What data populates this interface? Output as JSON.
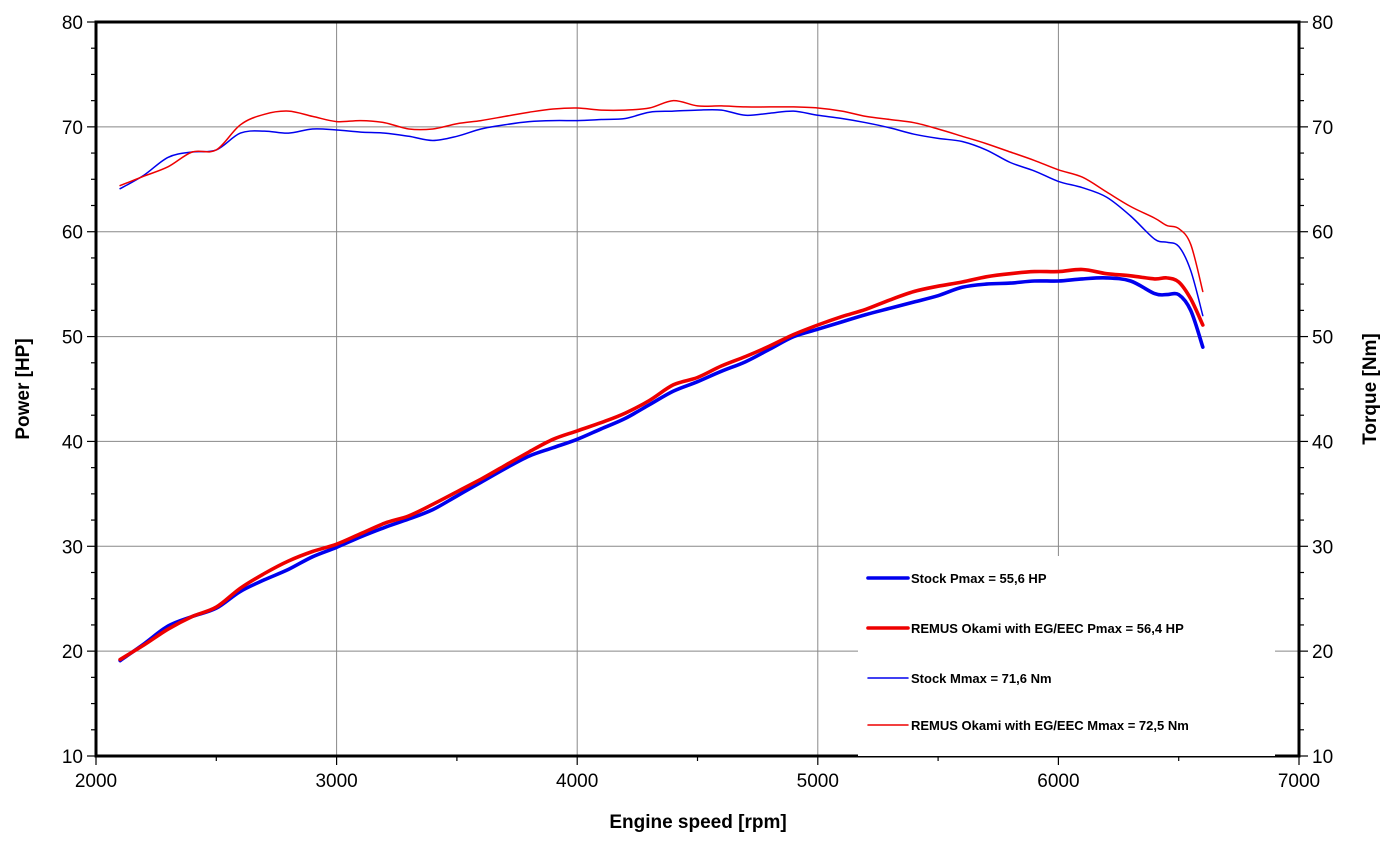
{
  "chart_data": {
    "type": "line",
    "xlabel": "Engine speed [rpm]",
    "ylabel": "Power [HP]",
    "y2label": "Torque [Nm]",
    "xlim": [
      2000,
      7000
    ],
    "ylim": [
      10,
      80
    ],
    "y2lim": [
      10,
      80
    ],
    "x_ticks": [
      "2000",
      "3000",
      "4000",
      "5000",
      "6000",
      "7000"
    ],
    "y_ticks": [
      "10",
      "20",
      "30",
      "40",
      "50",
      "60",
      "70",
      "80"
    ],
    "grid": true,
    "legend_position": "bottom-right",
    "series": [
      {
        "name": "Stock Pmax = 55,6 HP",
        "color": "#0000ee",
        "width": "thick",
        "axis": "left",
        "x": [
          2100,
          2200,
          2300,
          2400,
          2500,
          2600,
          2700,
          2800,
          2900,
          3000,
          3100,
          3200,
          3300,
          3400,
          3500,
          3600,
          3700,
          3800,
          3900,
          4000,
          4100,
          4200,
          4300,
          4400,
          4500,
          4600,
          4700,
          4800,
          4900,
          5000,
          5100,
          5200,
          5300,
          5400,
          5500,
          5600,
          5700,
          5800,
          5900,
          6000,
          6100,
          6200,
          6300,
          6400,
          6450,
          6500,
          6550,
          6600
        ],
        "y": [
          19.1,
          20.7,
          22.4,
          23.3,
          24.1,
          25.7,
          26.8,
          27.8,
          29.0,
          29.9,
          30.9,
          31.8,
          32.6,
          33.5,
          34.8,
          36.1,
          37.4,
          38.6,
          39.4,
          40.2,
          41.2,
          42.2,
          43.5,
          44.8,
          45.7,
          46.7,
          47.6,
          48.8,
          50.0,
          50.7,
          51.4,
          52.1,
          52.7,
          53.3,
          53.9,
          54.7,
          55.0,
          55.1,
          55.3,
          55.3,
          55.5,
          55.6,
          55.3,
          54.1,
          54.0,
          54.0,
          52.5,
          49.0
        ]
      },
      {
        "name": "REMUS Okami with EG/EEC Pmax =  56,4 HP",
        "color": "#ee0000",
        "width": "thick",
        "axis": "left",
        "x": [
          2100,
          2200,
          2300,
          2400,
          2500,
          2600,
          2700,
          2800,
          2900,
          3000,
          3100,
          3200,
          3300,
          3400,
          3500,
          3600,
          3700,
          3800,
          3900,
          4000,
          4100,
          4200,
          4300,
          4400,
          4500,
          4600,
          4700,
          4800,
          4900,
          5000,
          5100,
          5200,
          5300,
          5400,
          5500,
          5600,
          5700,
          5800,
          5900,
          6000,
          6100,
          6200,
          6300,
          6400,
          6450,
          6500,
          6550,
          6600
        ],
        "y": [
          19.2,
          20.6,
          22.1,
          23.3,
          24.2,
          26.0,
          27.4,
          28.6,
          29.5,
          30.2,
          31.2,
          32.2,
          32.9,
          34.0,
          35.2,
          36.4,
          37.7,
          39.0,
          40.2,
          41.0,
          41.8,
          42.7,
          43.9,
          45.4,
          46.1,
          47.2,
          48.1,
          49.1,
          50.2,
          51.1,
          51.9,
          52.6,
          53.5,
          54.3,
          54.8,
          55.2,
          55.7,
          56.0,
          56.2,
          56.2,
          56.4,
          56.0,
          55.8,
          55.5,
          55.6,
          55.2,
          53.6,
          51.1
        ]
      },
      {
        "name": "Stock Mmax = 71,6 Nm",
        "color": "#0000ee",
        "width": "thin",
        "axis": "right",
        "x": [
          2100,
          2200,
          2300,
          2400,
          2500,
          2600,
          2700,
          2800,
          2900,
          3000,
          3100,
          3200,
          3300,
          3400,
          3500,
          3600,
          3700,
          3800,
          3900,
          4000,
          4100,
          4200,
          4300,
          4400,
          4500,
          4600,
          4700,
          4800,
          4900,
          5000,
          5100,
          5200,
          5300,
          5400,
          5500,
          5600,
          5700,
          5800,
          5900,
          6000,
          6100,
          6200,
          6300,
          6400,
          6450,
          6500,
          6550,
          6600
        ],
        "y": [
          64.1,
          65.4,
          67.1,
          67.6,
          67.8,
          69.4,
          69.6,
          69.4,
          69.8,
          69.7,
          69.5,
          69.4,
          69.1,
          68.7,
          69.1,
          69.8,
          70.2,
          70.5,
          70.6,
          70.6,
          70.7,
          70.8,
          71.4,
          71.5,
          71.6,
          71.6,
          71.1,
          71.3,
          71.5,
          71.1,
          70.8,
          70.4,
          69.9,
          69.3,
          68.9,
          68.6,
          67.8,
          66.6,
          65.8,
          64.8,
          64.2,
          63.3,
          61.5,
          59.3,
          59.0,
          58.6,
          56.3,
          52.0
        ]
      },
      {
        "name": "REMUS Okami with EG/EEC Mmax = 72,5 Nm",
        "color": "#ee0000",
        "width": "thin",
        "axis": "right",
        "x": [
          2100,
          2200,
          2300,
          2400,
          2500,
          2600,
          2700,
          2800,
          2900,
          3000,
          3100,
          3200,
          3300,
          3400,
          3500,
          3600,
          3700,
          3800,
          3900,
          4000,
          4100,
          4200,
          4300,
          4400,
          4500,
          4600,
          4700,
          4800,
          4900,
          5000,
          5100,
          5200,
          5300,
          5400,
          5500,
          5600,
          5700,
          5800,
          5900,
          6000,
          6100,
          6200,
          6300,
          6400,
          6450,
          6500,
          6550,
          6600
        ],
        "y": [
          64.4,
          65.3,
          66.2,
          67.6,
          67.8,
          70.2,
          71.2,
          71.5,
          71.0,
          70.5,
          70.6,
          70.4,
          69.8,
          69.8,
          70.3,
          70.6,
          71.0,
          71.4,
          71.7,
          71.8,
          71.6,
          71.6,
          71.8,
          72.5,
          72.0,
          72.0,
          71.9,
          71.9,
          71.9,
          71.8,
          71.5,
          71.0,
          70.7,
          70.4,
          69.8,
          69.1,
          68.4,
          67.6,
          66.8,
          65.9,
          65.2,
          63.8,
          62.4,
          61.3,
          60.6,
          60.3,
          58.8,
          54.3
        ]
      }
    ]
  }
}
